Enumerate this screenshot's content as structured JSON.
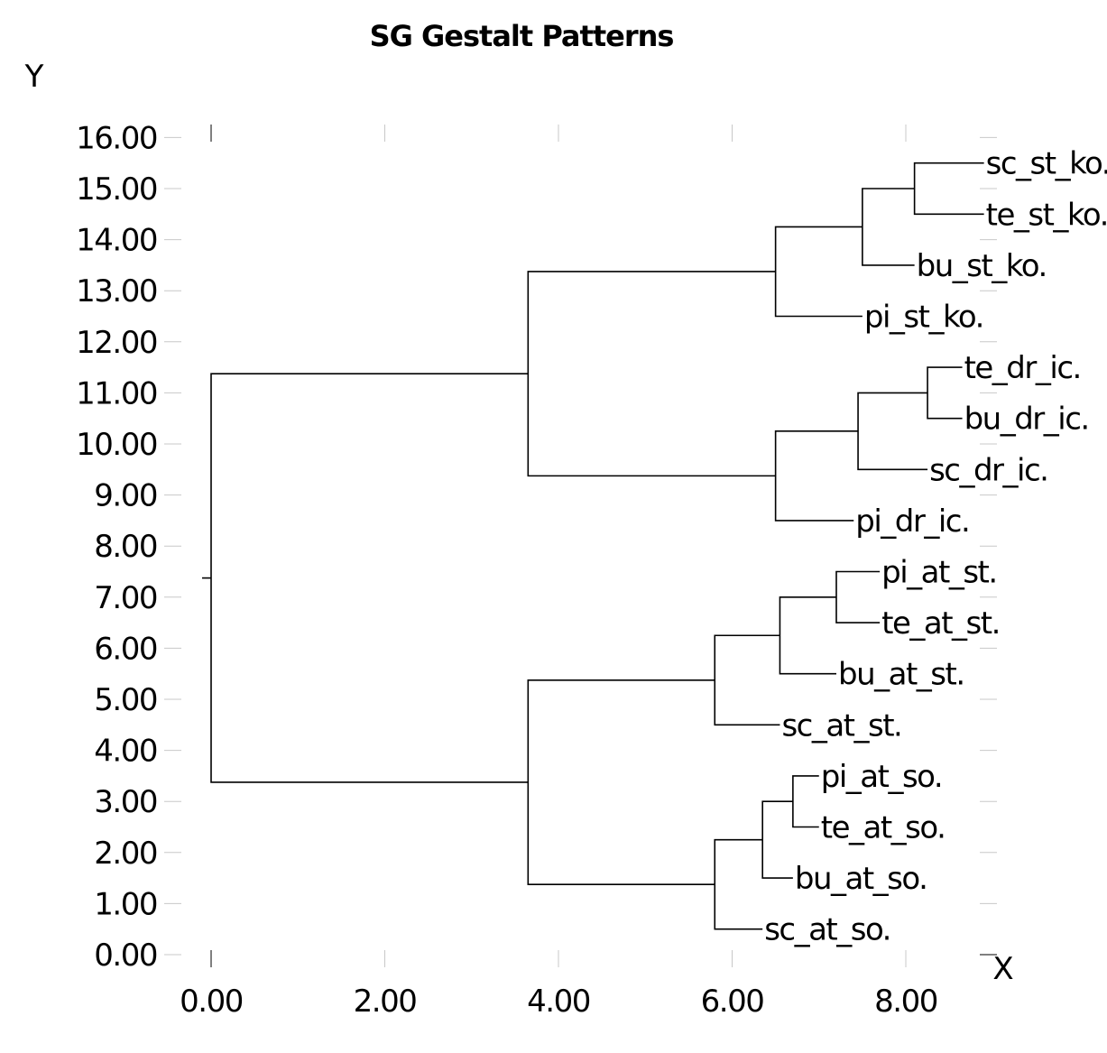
{
  "chart_data": {
    "type": "dendrogram",
    "title": "SG Gestalt Patterns",
    "xlabel": "X",
    "ylabel": "Y",
    "xlim": [
      0,
      9
    ],
    "ylim": [
      0,
      16
    ],
    "x_ticks": [
      0,
      2,
      4,
      6,
      8
    ],
    "y_ticks": [
      0,
      1,
      2,
      3,
      4,
      5,
      6,
      7,
      8,
      9,
      10,
      11,
      12,
      13,
      14,
      15,
      16
    ],
    "tick_decimals": 2,
    "grid": false,
    "leaves": [
      {
        "name": "sc_st_ko.",
        "y": 15.5
      },
      {
        "name": "te_st_ko.",
        "y": 14.5
      },
      {
        "name": "bu_st_ko.",
        "y": 13.5
      },
      {
        "name": "pi_st_ko.",
        "y": 12.5
      },
      {
        "name": "te_dr_ic.",
        "y": 11.5
      },
      {
        "name": "bu_dr_ic.",
        "y": 10.5
      },
      {
        "name": "sc_dr_ic.",
        "y": 9.5
      },
      {
        "name": "pi_dr_ic.",
        "y": 8.5
      },
      {
        "name": "pi_at_st.",
        "y": 7.5
      },
      {
        "name": "te_at_st.",
        "y": 6.5
      },
      {
        "name": "bu_at_st.",
        "y": 5.5
      },
      {
        "name": "sc_at_st.",
        "y": 4.5
      },
      {
        "name": "pi_at_so.",
        "y": 3.5
      },
      {
        "name": "te_at_so.",
        "y": 2.5
      },
      {
        "name": "bu_at_so.",
        "y": 1.5
      },
      {
        "name": "sc_at_so.",
        "y": 0.5
      }
    ],
    "merges": [
      {
        "x": 8.1,
        "y_top": 15.5,
        "y_bottom": 14.5,
        "x_top": 8.9,
        "x_bottom": 8.9
      },
      {
        "x": 7.5,
        "y_top": 15.0,
        "y_bottom": 13.5,
        "x_top": 8.1,
        "x_bottom": 8.1
      },
      {
        "x": 6.5,
        "y_top": 14.25,
        "y_bottom": 12.5,
        "x_top": 7.5,
        "x_bottom": 7.5
      },
      {
        "x": 3.65,
        "y_top": 13.375,
        "y_bottom": 9.375,
        "x_top": 6.5,
        "x_bottom": 6.5
      },
      {
        "x": 8.25,
        "y_top": 11.5,
        "y_bottom": 10.5,
        "x_top": 8.65,
        "x_bottom": 8.65
      },
      {
        "x": 7.45,
        "y_top": 11.0,
        "y_bottom": 9.5,
        "x_top": 8.25,
        "x_bottom": 8.25
      },
      {
        "x": 6.5,
        "y_top": 10.25,
        "y_bottom": 8.5,
        "x_top": 7.45,
        "x_bottom": 7.4
      },
      {
        "x": 0.0,
        "y_top": 11.375,
        "y_bottom": 3.375,
        "x_top": 3.65,
        "x_bottom": 3.65
      },
      {
        "x": 7.2,
        "y_top": 7.5,
        "y_bottom": 6.5,
        "x_top": 7.7,
        "x_bottom": 7.7
      },
      {
        "x": 6.55,
        "y_top": 7.0,
        "y_bottom": 5.5,
        "x_top": 7.2,
        "x_bottom": 7.2
      },
      {
        "x": 5.8,
        "y_top": 6.25,
        "y_bottom": 4.5,
        "x_top": 6.55,
        "x_bottom": 6.55
      },
      {
        "x": 3.65,
        "y_top": 5.375,
        "y_bottom": 1.375,
        "x_top": 5.8,
        "x_bottom": 5.8
      },
      {
        "x": 6.7,
        "y_top": 3.5,
        "y_bottom": 2.5,
        "x_top": 7.0,
        "x_bottom": 7.0
      },
      {
        "x": 6.35,
        "y_top": 3.0,
        "y_bottom": 1.5,
        "x_top": 6.7,
        "x_bottom": 6.7
      },
      {
        "x": 5.8,
        "y_top": 2.25,
        "y_bottom": 0.5,
        "x_top": 6.35,
        "x_bottom": 6.35
      }
    ],
    "leaf_ends": {
      "sc_st_ko.": 8.9,
      "te_st_ko.": 8.9,
      "bu_st_ko.": 8.1,
      "pi_st_ko.": 7.5,
      "te_dr_ic.": 8.65,
      "bu_dr_ic.": 8.65,
      "sc_dr_ic.": 8.25,
      "pi_dr_ic.": 7.4,
      "pi_at_st.": 7.7,
      "te_at_st.": 7.7,
      "bu_at_st.": 7.2,
      "sc_at_st.": 6.55,
      "pi_at_so.": 7.0,
      "te_at_so.": 7.0,
      "bu_at_so.": 6.7,
      "sc_at_so.": 6.35
    }
  }
}
